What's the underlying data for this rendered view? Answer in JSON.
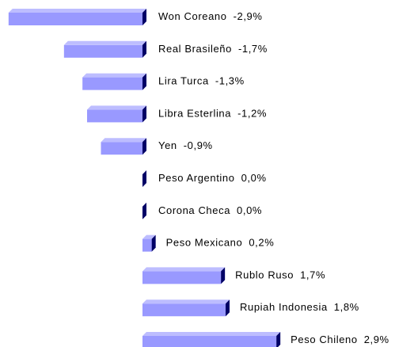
{
  "chart_data": {
    "type": "bar",
    "orientation": "horizontal",
    "categories": [
      "Won Coreano",
      "Real Brasileño",
      "Lira Turca",
      "Libra Esterlina",
      "Yen",
      "Peso Argentino",
      "Corona Checa",
      "Peso Mexicano",
      "Rublo Ruso",
      "Rupiah Indonesia",
      "Peso Chileno"
    ],
    "values": [
      -2.9,
      -1.7,
      -1.3,
      -1.2,
      -0.9,
      0.0,
      0.0,
      0.2,
      1.7,
      1.8,
      2.9
    ],
    "value_labels": [
      "-2,9%",
      "-1,7%",
      "-1,3%",
      "-1,2%",
      "-0,9%",
      "0,0%",
      "0,0%",
      "0,2%",
      "1,7%",
      "1,8%",
      "2,9%"
    ],
    "color": "#9999ff",
    "xlim": [
      -3,
      3
    ]
  }
}
